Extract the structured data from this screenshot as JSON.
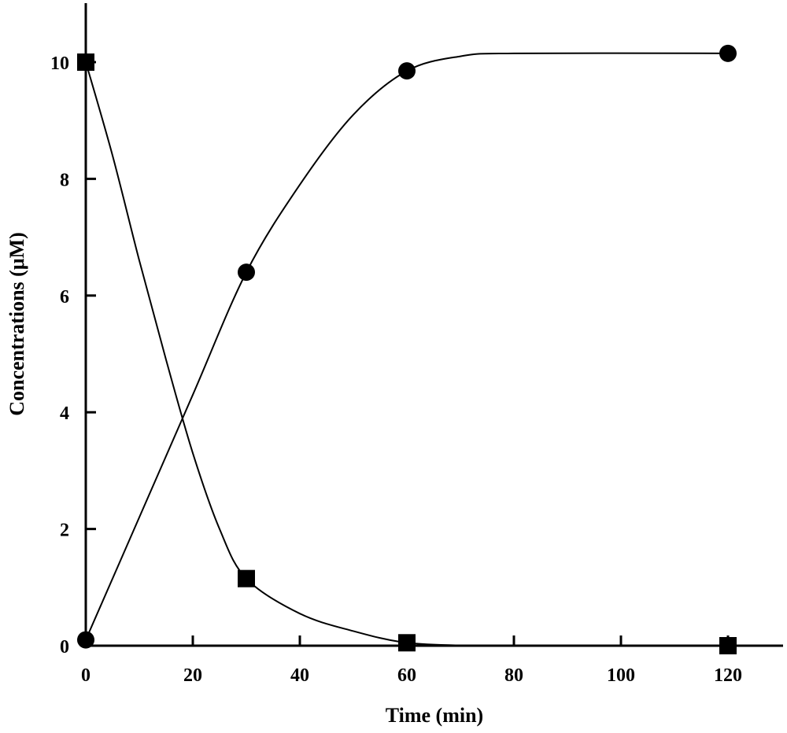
{
  "chart_data": {
    "type": "line",
    "title": "",
    "xlabel": "Time (min)",
    "ylabel": "Concentrations (μM)",
    "xlim": [
      0,
      130
    ],
    "ylim": [
      0,
      11
    ],
    "xticks": [
      0,
      20,
      40,
      60,
      80,
      100,
      120
    ],
    "yticks": [
      0,
      2,
      4,
      6,
      8,
      10
    ],
    "grid": false,
    "series": [
      {
        "name": "circles",
        "marker": "circle",
        "x": [
          0,
          30,
          60,
          120
        ],
        "y": [
          0.1,
          6.4,
          9.85,
          10.15
        ],
        "curve": [
          [
            0,
            0.1
          ],
          [
            10,
            2.2
          ],
          [
            20,
            4.3
          ],
          [
            30,
            6.4
          ],
          [
            40,
            7.9
          ],
          [
            50,
            9.1
          ],
          [
            60,
            9.85
          ],
          [
            70,
            10.1
          ],
          [
            80,
            10.15
          ],
          [
            120,
            10.15
          ]
        ]
      },
      {
        "name": "squares",
        "marker": "square",
        "x": [
          0,
          30,
          60,
          120
        ],
        "y": [
          10,
          1.15,
          0.05,
          0
        ],
        "curve": [
          [
            0,
            10
          ],
          [
            5,
            8.4
          ],
          [
            10,
            6.6
          ],
          [
            15,
            4.9
          ],
          [
            20,
            3.3
          ],
          [
            25,
            2.0
          ],
          [
            30,
            1.15
          ],
          [
            40,
            0.55
          ],
          [
            50,
            0.25
          ],
          [
            60,
            0.05
          ],
          [
            72,
            0
          ]
        ]
      }
    ],
    "color": "#000000"
  }
}
